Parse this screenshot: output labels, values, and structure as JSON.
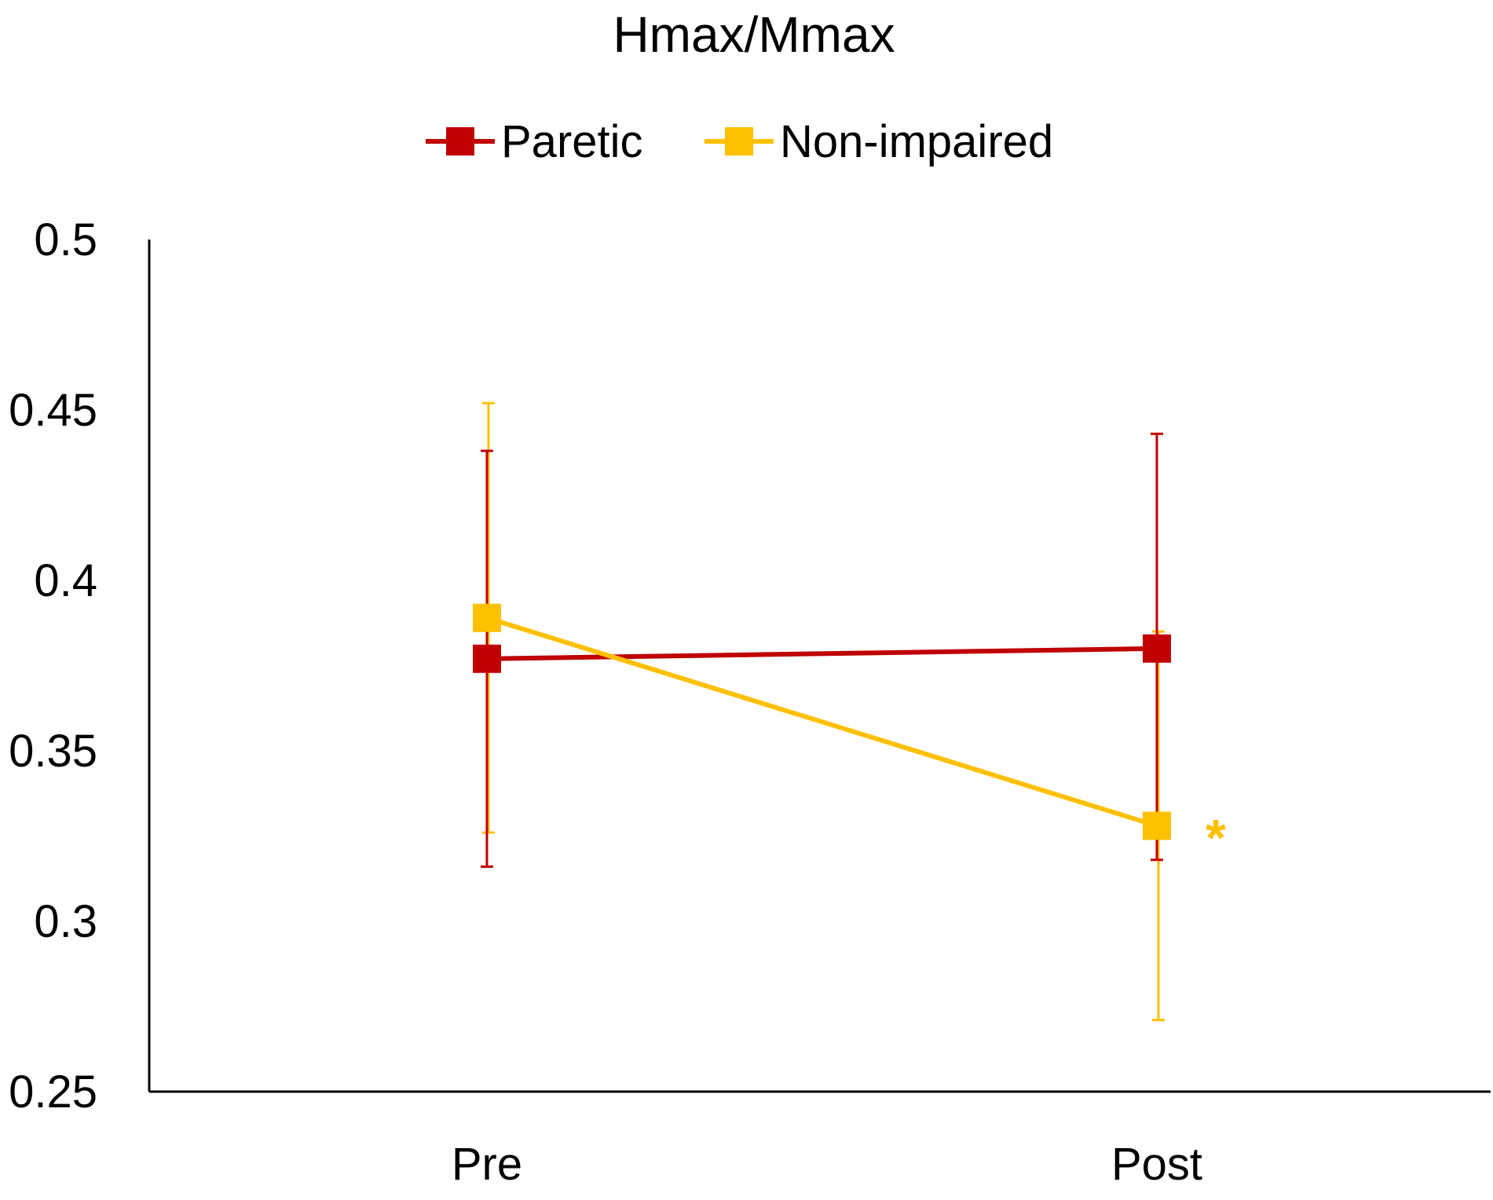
{
  "chart_data": {
    "type": "line",
    "title": "Hmax/Mmax",
    "xlabel": "",
    "ylabel": "",
    "categories": [
      "Pre",
      "Post"
    ],
    "ylim": [
      0.25,
      0.5
    ],
    "yticks": [
      0.5,
      0.45,
      0.4,
      0.35,
      0.3,
      0.25
    ],
    "ytick_labels": [
      "0.5",
      "0.45",
      "0.4",
      "0.35",
      "0.3",
      "0.25"
    ],
    "grid": false,
    "legend_position": "top-center",
    "series": [
      {
        "name": "Paretic",
        "color": "#C00000",
        "values": [
          0.377,
          0.38
        ],
        "error_upper": [
          0.438,
          0.443
        ],
        "error_lower": [
          0.316,
          0.318
        ]
      },
      {
        "name": "Non-impaired",
        "color": "#FFC000",
        "values": [
          0.389,
          0.328
        ],
        "error_upper": [
          0.452,
          0.385
        ],
        "error_lower": [
          0.326,
          0.271
        ]
      }
    ],
    "annotations": [
      {
        "text": "*",
        "category": "Post",
        "series": "Non-impaired",
        "color": "#FFC000"
      }
    ]
  }
}
